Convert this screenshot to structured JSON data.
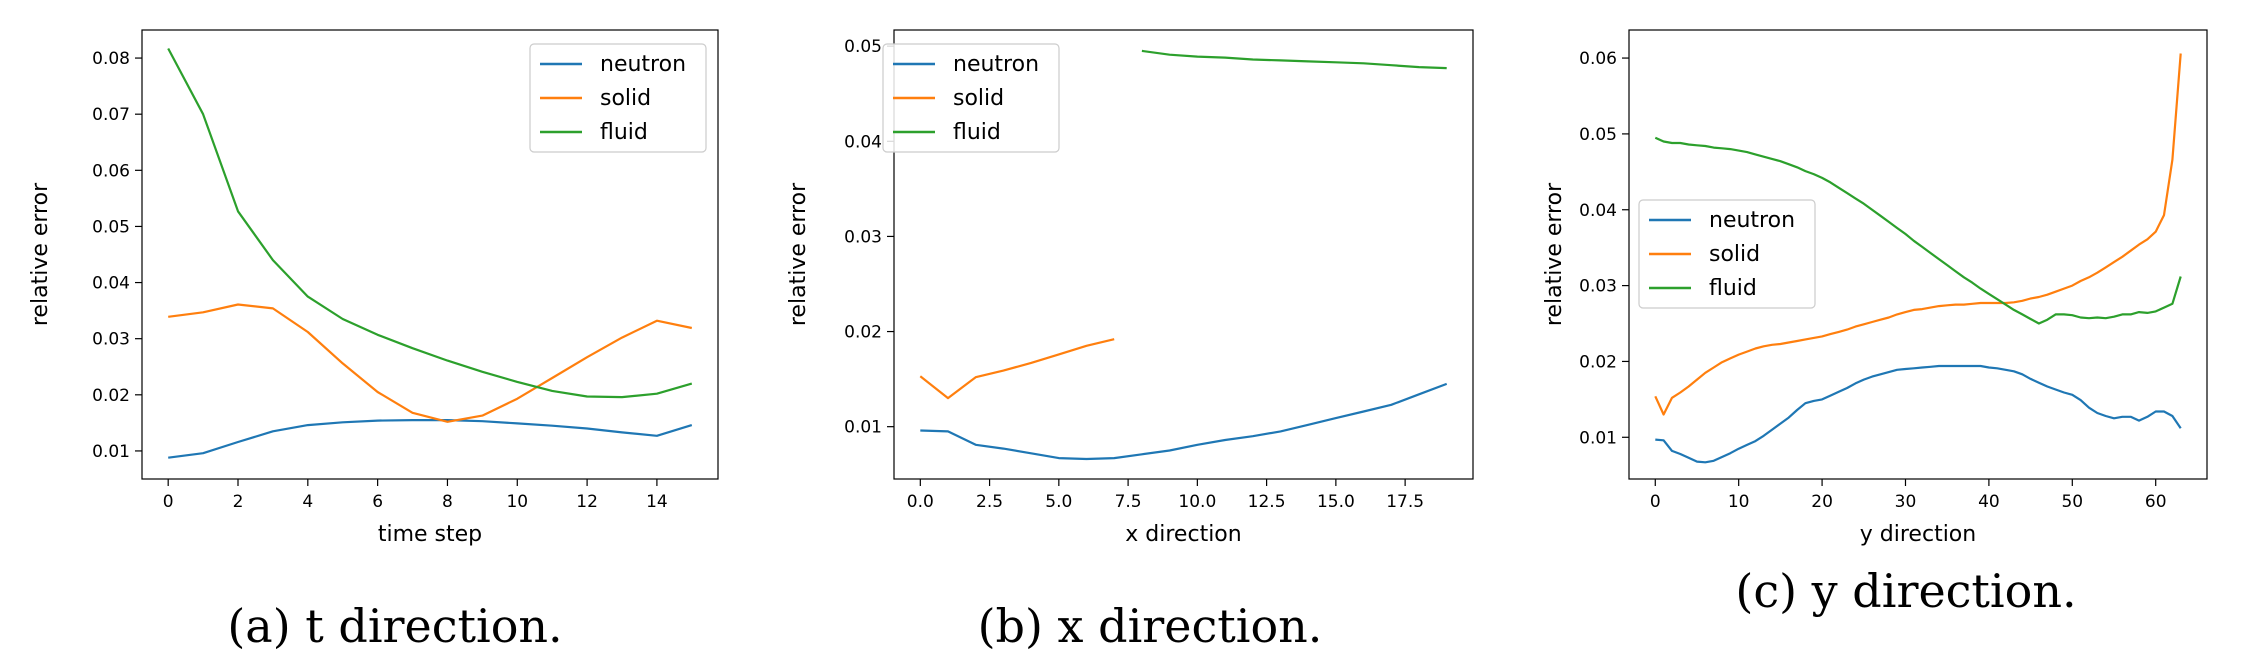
{
  "colors": {
    "neutron": "#1f77b4",
    "solid": "#ff7f0e",
    "fluid": "#2ca02c"
  },
  "chart_data": [
    {
      "type": "line",
      "caption": "(a) t direction.",
      "xlabel": "time step",
      "ylabel": "relative error",
      "xlim": [
        -0.75,
        15.75
      ],
      "ylim": [
        0.005,
        0.085
      ],
      "xticks": [
        0,
        2,
        4,
        6,
        8,
        10,
        12,
        14
      ],
      "xtick_labels": [
        "0",
        "2",
        "4",
        "6",
        "8",
        "10",
        "12",
        "14"
      ],
      "yticks": [
        0.01,
        0.02,
        0.03,
        0.04,
        0.05,
        0.06,
        0.07,
        0.08
      ],
      "ytick_labels": [
        "0.01",
        "0.02",
        "0.03",
        "0.04",
        "0.05",
        "0.06",
        "0.07",
        "0.08"
      ],
      "legend_position": "upper right",
      "series": [
        {
          "name": "neutron",
          "x": [
            0,
            1,
            2,
            3,
            4,
            5,
            6,
            7,
            8,
            9,
            10,
            11,
            12,
            13,
            14,
            15
          ],
          "y": [
            0.0088,
            0.0096,
            0.0116,
            0.0135,
            0.0146,
            0.0151,
            0.0154,
            0.0155,
            0.0155,
            0.0153,
            0.0149,
            0.0145,
            0.014,
            0.0133,
            0.0127,
            0.0146
          ]
        },
        {
          "name": "solid",
          "x": [
            0,
            1,
            2,
            3,
            4,
            5,
            6,
            7,
            8,
            9,
            10,
            11,
            12,
            13,
            14,
            15
          ],
          "y": [
            0.0339,
            0.0347,
            0.0361,
            0.0354,
            0.0312,
            0.0256,
            0.0205,
            0.0168,
            0.0152,
            0.0163,
            0.0193,
            0.023,
            0.0267,
            0.0302,
            0.0332,
            0.0319
          ]
        },
        {
          "name": "fluid",
          "x": [
            0,
            1,
            2,
            3,
            4,
            5,
            6,
            7,
            8,
            9,
            10,
            11,
            12,
            13,
            14,
            15
          ],
          "y": [
            0.0817,
            0.07,
            0.0527,
            0.044,
            0.0375,
            0.0335,
            0.0307,
            0.0283,
            0.0261,
            0.0241,
            0.0223,
            0.0207,
            0.0197,
            0.0196,
            0.0202,
            0.022
          ]
        }
      ]
    },
    {
      "type": "line",
      "caption": "(b) x direction.",
      "xlabel": "x direction",
      "ylabel": "relative error",
      "xlim": [
        -0.95,
        19.95
      ],
      "ylim": [
        0.0045,
        0.0517
      ],
      "xticks": [
        0,
        2.5,
        5,
        7.5,
        10,
        12.5,
        15,
        17.5
      ],
      "xtick_labels": [
        "0.0",
        "2.5",
        "5.0",
        "7.5",
        "10.0",
        "12.5",
        "15.0",
        "17.5"
      ],
      "yticks": [
        0.01,
        0.02,
        0.03,
        0.04,
        0.05
      ],
      "ytick_labels": [
        "0.01",
        "0.02",
        "0.03",
        "0.04",
        "0.05"
      ],
      "legend_position": "upper left",
      "series": [
        {
          "name": "neutron",
          "x": [
            0,
            1,
            2,
            3,
            4,
            5,
            6,
            7,
            8,
            9,
            10,
            11,
            12,
            13,
            14,
            15,
            16,
            17,
            18,
            19
          ],
          "y": [
            0.0096,
            0.0095,
            0.0081,
            0.0077,
            0.0072,
            0.0067,
            0.0066,
            0.0067,
            0.0071,
            0.0075,
            0.0081,
            0.0086,
            0.009,
            0.0095,
            0.0102,
            0.0109,
            0.0116,
            0.0123,
            0.0134,
            0.0145
          ]
        },
        {
          "name": "solid",
          "x": [
            0,
            1,
            2,
            3,
            4,
            5,
            6,
            7
          ],
          "y": [
            0.0153,
            0.013,
            0.0152,
            0.0159,
            0.0167,
            0.0176,
            0.0185,
            0.0192
          ]
        },
        {
          "name": "fluid",
          "x": [
            8,
            9,
            10,
            11,
            12,
            13,
            14,
            15,
            16,
            17,
            18,
            19
          ],
          "y": [
            0.0495,
            0.0491,
            0.0489,
            0.0488,
            0.0486,
            0.0485,
            0.0484,
            0.0483,
            0.0482,
            0.048,
            0.0478,
            0.0477
          ]
        }
      ]
    },
    {
      "type": "line",
      "caption": "(c) y direction.",
      "xlabel": "y direction",
      "ylabel": "relative error",
      "xlim": [
        -3.15,
        66.15
      ],
      "ylim": [
        0.0045,
        0.0637
      ],
      "xticks": [
        0,
        10,
        20,
        30,
        40,
        50,
        60
      ],
      "xtick_labels": [
        "0",
        "10",
        "20",
        "30",
        "40",
        "50",
        "60"
      ],
      "yticks": [
        0.01,
        0.02,
        0.03,
        0.04,
        0.05,
        0.06
      ],
      "ytick_labels": [
        "0.01",
        "0.02",
        "0.03",
        "0.04",
        "0.05",
        "0.06"
      ],
      "legend_position": "center left",
      "series": [
        {
          "name": "neutron",
          "x": [
            0,
            1,
            2,
            3,
            4,
            5,
            6,
            7,
            8,
            9,
            10,
            11,
            12,
            13,
            14,
            15,
            16,
            17,
            18,
            19,
            20,
            21,
            22,
            23,
            24,
            25,
            26,
            27,
            28,
            29,
            30,
            31,
            32,
            33,
            34,
            35,
            36,
            37,
            38,
            39,
            40,
            41,
            42,
            43,
            44,
            45,
            46,
            47,
            48,
            49,
            50,
            51,
            52,
            53,
            54,
            55,
            56,
            57,
            58,
            59,
            60,
            61,
            62,
            63
          ],
          "y": [
            0.0097,
            0.0096,
            0.0082,
            0.0078,
            0.0073,
            0.0068,
            0.0067,
            0.0069,
            0.0074,
            0.0079,
            0.0085,
            0.009,
            0.0095,
            0.0102,
            0.011,
            0.0118,
            0.0126,
            0.0136,
            0.0145,
            0.0148,
            0.015,
            0.0155,
            0.016,
            0.0165,
            0.0171,
            0.0176,
            0.018,
            0.0183,
            0.0186,
            0.0189,
            0.019,
            0.0191,
            0.0192,
            0.0193,
            0.0194,
            0.0194,
            0.0194,
            0.0194,
            0.0194,
            0.0194,
            0.0192,
            0.0191,
            0.0189,
            0.0187,
            0.0183,
            0.0177,
            0.0172,
            0.0167,
            0.0163,
            0.0159,
            0.0156,
            0.0149,
            0.0139,
            0.0132,
            0.0128,
            0.0125,
            0.0127,
            0.0127,
            0.0122,
            0.0127,
            0.0134,
            0.0134,
            0.0128,
            0.0112
          ]
        },
        {
          "name": "solid",
          "x": [
            0,
            1,
            2,
            3,
            4,
            5,
            6,
            7,
            8,
            9,
            10,
            11,
            12,
            13,
            14,
            15,
            16,
            17,
            18,
            19,
            20,
            21,
            22,
            23,
            24,
            25,
            26,
            27,
            28,
            29,
            30,
            31,
            32,
            33,
            34,
            35,
            36,
            37,
            38,
            39,
            40,
            41,
            42,
            43,
            44,
            45,
            46,
            47,
            48,
            49,
            50,
            51,
            52,
            53,
            54,
            55,
            56,
            57,
            58,
            59,
            60,
            61,
            62,
            63
          ],
          "y": [
            0.0154,
            0.013,
            0.0152,
            0.0159,
            0.0167,
            0.0176,
            0.0185,
            0.0192,
            0.0199,
            0.0204,
            0.0209,
            0.0213,
            0.0217,
            0.022,
            0.0222,
            0.0223,
            0.0225,
            0.0227,
            0.0229,
            0.0231,
            0.0233,
            0.0236,
            0.0239,
            0.0242,
            0.0246,
            0.0249,
            0.0252,
            0.0255,
            0.0258,
            0.0262,
            0.0265,
            0.0268,
            0.0269,
            0.0271,
            0.0273,
            0.0274,
            0.0275,
            0.0275,
            0.0276,
            0.0277,
            0.0277,
            0.0277,
            0.0277,
            0.0278,
            0.028,
            0.0283,
            0.0285,
            0.0288,
            0.0292,
            0.0296,
            0.03,
            0.0306,
            0.0311,
            0.0317,
            0.0324,
            0.0331,
            0.0338,
            0.0346,
            0.0354,
            0.0361,
            0.0371,
            0.0393,
            0.0466,
            0.0606
          ]
        },
        {
          "name": "fluid",
          "x": [
            0,
            1,
            2,
            3,
            4,
            5,
            6,
            7,
            8,
            9,
            10,
            11,
            12,
            13,
            14,
            15,
            16,
            17,
            18,
            19,
            20,
            21,
            22,
            23,
            24,
            25,
            26,
            27,
            28,
            29,
            30,
            31,
            32,
            33,
            34,
            35,
            36,
            37,
            38,
            39,
            40,
            41,
            42,
            43,
            44,
            45,
            46,
            47,
            48,
            49,
            50,
            51,
            52,
            53,
            54,
            55,
            56,
            57,
            58,
            59,
            60,
            61,
            62,
            63
          ],
          "y": [
            0.0495,
            0.049,
            0.0488,
            0.0488,
            0.0486,
            0.0485,
            0.0484,
            0.0482,
            0.0481,
            0.048,
            0.0478,
            0.0476,
            0.0473,
            0.047,
            0.0467,
            0.0464,
            0.046,
            0.0456,
            0.0451,
            0.0447,
            0.0442,
            0.0436,
            0.0429,
            0.0422,
            0.0415,
            0.0408,
            0.04,
            0.0392,
            0.0384,
            0.0376,
            0.0368,
            0.0359,
            0.0351,
            0.0343,
            0.0335,
            0.0327,
            0.0319,
            0.0311,
            0.0304,
            0.0296,
            0.0289,
            0.0282,
            0.0275,
            0.0268,
            0.0262,
            0.0256,
            0.025,
            0.0255,
            0.0262,
            0.0262,
            0.0261,
            0.0258,
            0.0257,
            0.0258,
            0.0257,
            0.0259,
            0.0262,
            0.0262,
            0.0265,
            0.0264,
            0.0266,
            0.0271,
            0.0276,
            0.0312
          ]
        }
      ]
    }
  ]
}
